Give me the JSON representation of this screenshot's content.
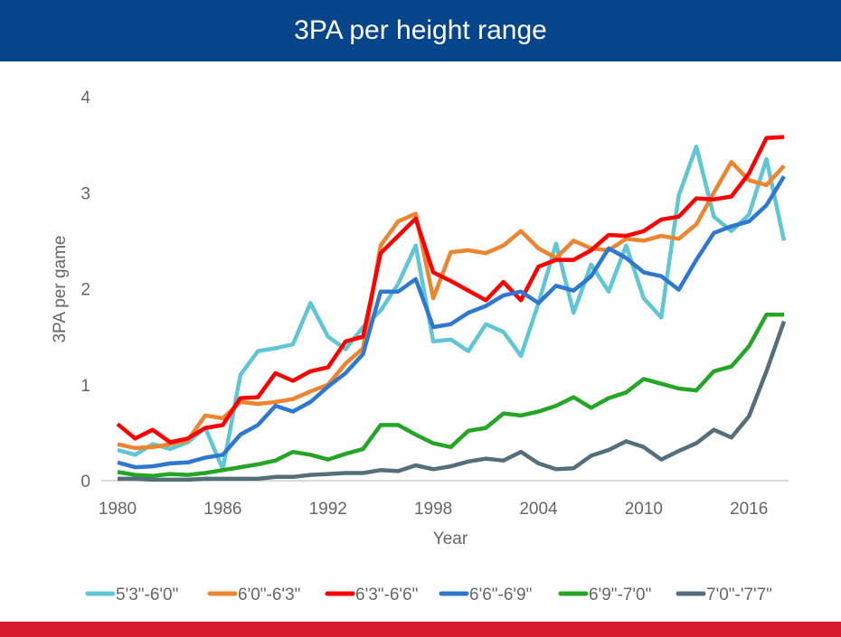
{
  "chart_data": {
    "type": "line",
    "title": "3PA per height range",
    "xlabel": "Year",
    "ylabel": "3PA  per game",
    "xlim": [
      1980,
      2018
    ],
    "ylim": [
      0,
      4
    ],
    "x_ticks": [
      "1980",
      "1986",
      "1992",
      "1998",
      "2004",
      "2010",
      "2016"
    ],
    "y_ticks": [
      "0",
      "1",
      "2",
      "3",
      "4"
    ],
    "grid": false,
    "legend": "bottom",
    "x": [
      1980,
      1981,
      1982,
      1983,
      1984,
      1985,
      1986,
      1987,
      1988,
      1989,
      1990,
      1991,
      1992,
      1993,
      1994,
      1995,
      1996,
      1997,
      1998,
      1999,
      2000,
      2001,
      2002,
      2003,
      2004,
      2005,
      2006,
      2007,
      2008,
      2009,
      2010,
      2011,
      2012,
      2013,
      2014,
      2015,
      2016,
      2017,
      2018
    ],
    "series": [
      {
        "name": "5'3\"-6'0\"",
        "color": "#5fc6d6",
        "values": [
          0.32,
          0.27,
          0.38,
          0.33,
          0.4,
          0.55,
          0.12,
          1.1,
          1.35,
          1.38,
          1.42,
          1.85,
          1.5,
          1.37,
          1.6,
          1.77,
          2.05,
          2.45,
          1.45,
          1.47,
          1.35,
          1.63,
          1.55,
          1.3,
          1.85,
          2.47,
          1.75,
          2.25,
          1.97,
          2.45,
          1.9,
          1.7,
          2.97,
          3.48,
          2.75,
          2.6,
          2.77,
          3.35,
          2.5
        ]
      },
      {
        "name": "6'0\"-6'3\"",
        "color": "#ed8430",
        "values": [
          0.38,
          0.34,
          0.35,
          0.38,
          0.42,
          0.68,
          0.65,
          0.82,
          0.8,
          0.82,
          0.85,
          0.93,
          1.0,
          1.22,
          1.38,
          2.45,
          2.7,
          2.78,
          1.9,
          2.38,
          2.4,
          2.37,
          2.45,
          2.6,
          2.42,
          2.32,
          2.5,
          2.42,
          2.4,
          2.52,
          2.5,
          2.55,
          2.52,
          2.67,
          3.0,
          3.32,
          3.13,
          3.08,
          3.28
        ]
      },
      {
        "name": "6'3\"-6'6\"",
        "color": "#ff0000",
        "values": [
          0.59,
          0.44,
          0.53,
          0.4,
          0.44,
          0.55,
          0.58,
          0.86,
          0.87,
          1.12,
          1.04,
          1.14,
          1.18,
          1.45,
          1.5,
          2.37,
          2.55,
          2.73,
          2.17,
          2.08,
          1.98,
          1.88,
          2.07,
          1.88,
          2.23,
          2.3,
          2.3,
          2.4,
          2.56,
          2.55,
          2.6,
          2.72,
          2.75,
          2.94,
          2.93,
          2.96,
          3.2,
          3.57,
          3.58
        ]
      },
      {
        "name": "6'6\"-6'9\"",
        "color": "#2f78cf",
        "values": [
          0.19,
          0.14,
          0.15,
          0.18,
          0.19,
          0.24,
          0.27,
          0.48,
          0.58,
          0.78,
          0.72,
          0.82,
          0.98,
          1.12,
          1.32,
          1.97,
          1.97,
          2.1,
          1.6,
          1.63,
          1.75,
          1.82,
          1.93,
          1.97,
          1.85,
          2.03,
          1.98,
          2.13,
          2.42,
          2.32,
          2.17,
          2.13,
          1.99,
          2.3,
          2.58,
          2.65,
          2.7,
          2.87,
          3.17
        ]
      },
      {
        "name": "6'9\"-7'0\"",
        "color": "#25a525",
        "values": [
          0.09,
          0.06,
          0.05,
          0.07,
          0.06,
          0.08,
          0.11,
          0.14,
          0.17,
          0.21,
          0.3,
          0.27,
          0.22,
          0.28,
          0.33,
          0.58,
          0.58,
          0.48,
          0.39,
          0.35,
          0.52,
          0.55,
          0.7,
          0.68,
          0.72,
          0.78,
          0.87,
          0.76,
          0.86,
          0.92,
          1.06,
          1.01,
          0.96,
          0.94,
          1.14,
          1.19,
          1.4,
          1.73,
          1.73
        ]
      },
      {
        "name": "7'0\"-'7'7\"",
        "color": "#546e7a",
        "values": [
          0.02,
          0.02,
          0.01,
          0.01,
          0.01,
          0.02,
          0.02,
          0.02,
          0.02,
          0.04,
          0.04,
          0.06,
          0.07,
          0.08,
          0.08,
          0.11,
          0.1,
          0.16,
          0.12,
          0.15,
          0.2,
          0.23,
          0.21,
          0.3,
          0.18,
          0.12,
          0.13,
          0.26,
          0.32,
          0.41,
          0.35,
          0.22,
          0.31,
          0.39,
          0.53,
          0.45,
          0.67,
          1.14,
          1.66
        ]
      }
    ]
  }
}
